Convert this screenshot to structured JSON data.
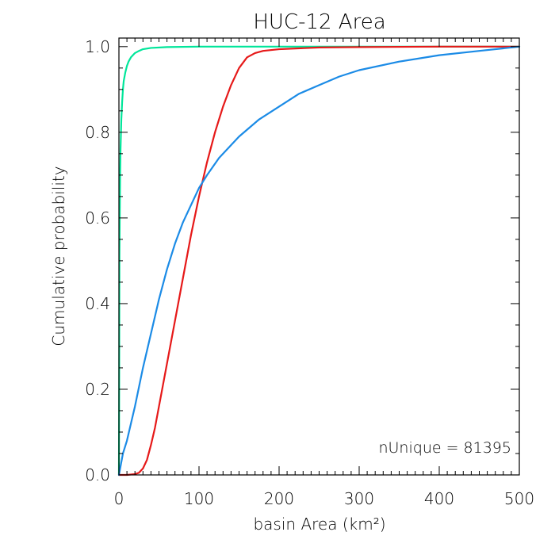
{
  "chart_data": {
    "type": "line",
    "title": "HUC-12 Area",
    "xlabel": "basin Area (km²)",
    "ylabel": "Cumulative probability",
    "xlim": [
      0,
      500
    ],
    "ylim": [
      0,
      1.02
    ],
    "x_ticks": [
      "0",
      "100",
      "200",
      "300",
      "400",
      "500"
    ],
    "y_ticks": [
      "0.0",
      "0.2",
      "0.4",
      "0.6",
      "0.8",
      "1.0"
    ],
    "annotation": "nUnique = 81395",
    "grid": false,
    "series": [
      {
        "color": "#00e69a",
        "x": [
          0,
          0.3,
          0.6,
          1,
          1.5,
          2,
          3,
          4,
          5,
          6,
          8,
          10,
          12,
          15,
          20,
          25,
          30,
          40,
          60,
          100,
          200,
          300,
          500
        ],
        "y": [
          0,
          0.2,
          0.51,
          0.6,
          0.7,
          0.76,
          0.83,
          0.87,
          0.9,
          0.92,
          0.94,
          0.955,
          0.965,
          0.975,
          0.985,
          0.99,
          0.994,
          0.997,
          0.999,
          1.0,
          1.0,
          1.0,
          1.0
        ]
      },
      {
        "color": "#e61919",
        "x": [
          0,
          10,
          20,
          25,
          30,
          35,
          40,
          45,
          50,
          60,
          70,
          80,
          90,
          100,
          110,
          120,
          130,
          140,
          150,
          160,
          170,
          180,
          200,
          250,
          300,
          400,
          500
        ],
        "y": [
          0,
          0,
          0.002,
          0.005,
          0.015,
          0.035,
          0.07,
          0.11,
          0.16,
          0.26,
          0.36,
          0.46,
          0.56,
          0.65,
          0.73,
          0.8,
          0.86,
          0.91,
          0.95,
          0.975,
          0.985,
          0.99,
          0.994,
          0.998,
          0.999,
          1.0,
          1.0
        ]
      },
      {
        "color": "#1b8be6",
        "x": [
          0,
          5,
          10,
          15,
          20,
          30,
          40,
          50,
          60,
          70,
          80,
          90,
          100,
          110,
          125,
          150,
          175,
          200,
          225,
          250,
          275,
          300,
          350,
          400,
          450,
          500
        ],
        "y": [
          0,
          0.05,
          0.08,
          0.12,
          0.16,
          0.25,
          0.33,
          0.41,
          0.48,
          0.54,
          0.59,
          0.63,
          0.67,
          0.7,
          0.74,
          0.79,
          0.83,
          0.86,
          0.89,
          0.91,
          0.93,
          0.945,
          0.965,
          0.98,
          0.99,
          1.0
        ]
      }
    ]
  }
}
